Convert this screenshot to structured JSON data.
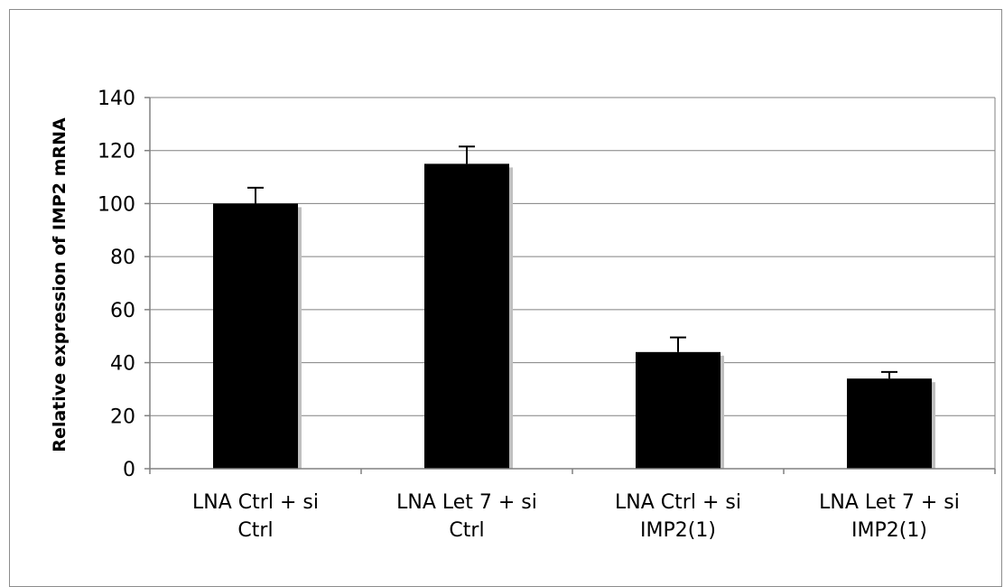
{
  "chart_data": {
    "type": "bar",
    "title": "",
    "xlabel": "",
    "ylabel": "Relative expression of IMP2 mRNA",
    "ylim": [
      0,
      140
    ],
    "yticks": [
      0,
      20,
      40,
      60,
      80,
      100,
      120,
      140
    ],
    "grid": true,
    "legend": "none",
    "categories": [
      [
        "LNA Ctrl + si",
        "Ctrl"
      ],
      [
        "LNA Let 7 + si",
        "Ctrl"
      ],
      [
        "LNA Ctrl + si",
        "IMP2(1)"
      ],
      [
        "LNA Let 7 + si",
        "IMP2(1)"
      ]
    ],
    "values": [
      100,
      115,
      44,
      34
    ],
    "errors": [
      6,
      6.5,
      5.5,
      2.5
    ],
    "colors": {
      "bar": "#000000",
      "shadow": "#c0c0c0",
      "grid": "#808080",
      "axis": "#808080"
    }
  }
}
